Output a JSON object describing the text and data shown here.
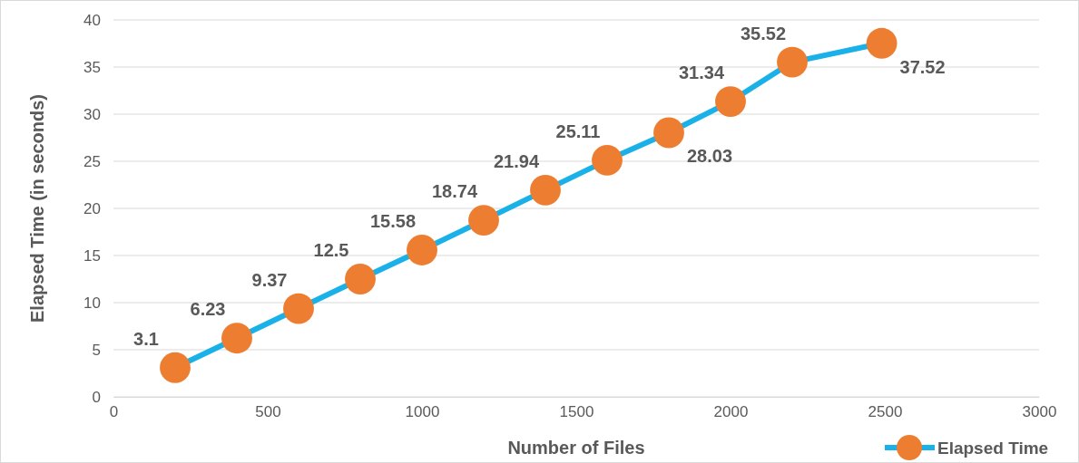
{
  "chart_data": {
    "type": "line",
    "xlabel": "Number of Files",
    "ylabel": "Elapsed Time (in seconds)",
    "x": [
      200,
      400,
      600,
      800,
      1000,
      1200,
      1400,
      1600,
      1800,
      2000,
      2200,
      2490
    ],
    "series": [
      {
        "name": "Elapsed Time",
        "color": "#1ab0e8",
        "colors": [
          "#ed7d31",
          "#ed7d31",
          "#ed7d31",
          "#ed7d31",
          "#ed7d31",
          "#ed7d31",
          "#ed7d31",
          "#ed7d31",
          "#ed7d31",
          "#ed7d31",
          "#ed7d31",
          "#ed7d31"
        ],
        "values": [
          3.1,
          6.23,
          9.37,
          12.5,
          15.58,
          18.74,
          21.94,
          25.11,
          28.03,
          31.34,
          35.52,
          37.52
        ]
      }
    ],
    "xlim": [
      0,
      3000
    ],
    "xticks": [
      0,
      500,
      1000,
      1500,
      2000,
      2500,
      3000
    ],
    "ylim": [
      0,
      40
    ],
    "yticks": [
      0,
      5,
      10,
      15,
      20,
      25,
      30,
      35,
      40
    ],
    "grid": "y",
    "legend": "bottom right",
    "marker": "circle",
    "line_style": "solid",
    "data_labels": true
  }
}
